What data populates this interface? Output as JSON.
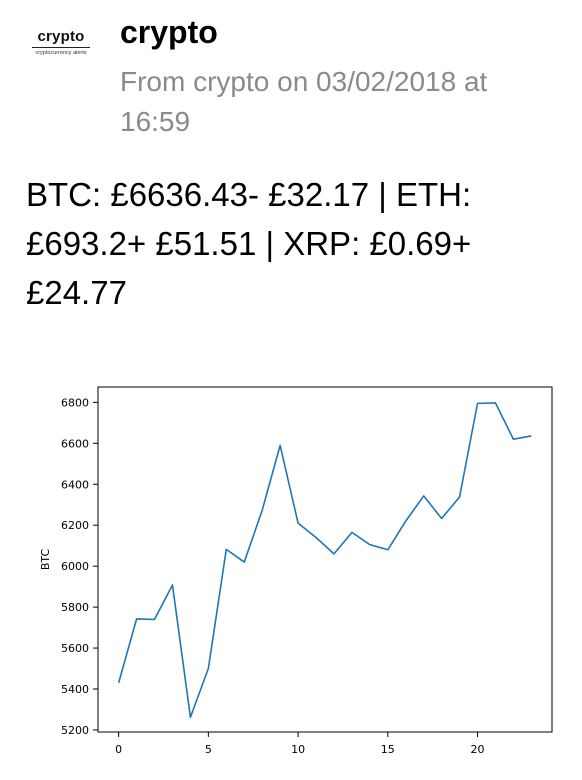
{
  "notification": {
    "logo_name": "crypto",
    "logo_tagline": "cryptocurrency alerts",
    "sender": "crypto",
    "meta": "From crypto on 03/02/2018 at 16:59",
    "message": "BTC: £6636.43- £32.17 | ETH: £693.2+ £51.51 | XRP: £0.69+ £24.77"
  },
  "colors": {
    "meta_text": "#8a8a8e",
    "line": "#1f77b4"
  },
  "chart_data": {
    "type": "line",
    "title": "",
    "xlabel": "",
    "ylabel": "BTC",
    "x": [
      0,
      1,
      2,
      3,
      4,
      5,
      6,
      7,
      8,
      9,
      10,
      11,
      12,
      13,
      14,
      15,
      16,
      17,
      18,
      19,
      20,
      21,
      22,
      23
    ],
    "series": [
      {
        "values": [
          5430,
          5742,
          5740,
          5908,
          5262,
          5500,
          6082,
          6020,
          6273,
          6590,
          6210,
          6140,
          6060,
          6165,
          6105,
          6080,
          6220,
          6343,
          6233,
          6338,
          6795,
          6797,
          6620,
          6636
        ]
      }
    ],
    "xlim": [
      -1.15,
      24.15
    ],
    "ylim": [
      5190,
      6875
    ],
    "xticks": [
      0,
      5,
      10,
      15,
      20
    ],
    "yticks": [
      5200,
      5400,
      5600,
      5800,
      6000,
      6200,
      6400,
      6600,
      6800
    ],
    "grid": false
  }
}
